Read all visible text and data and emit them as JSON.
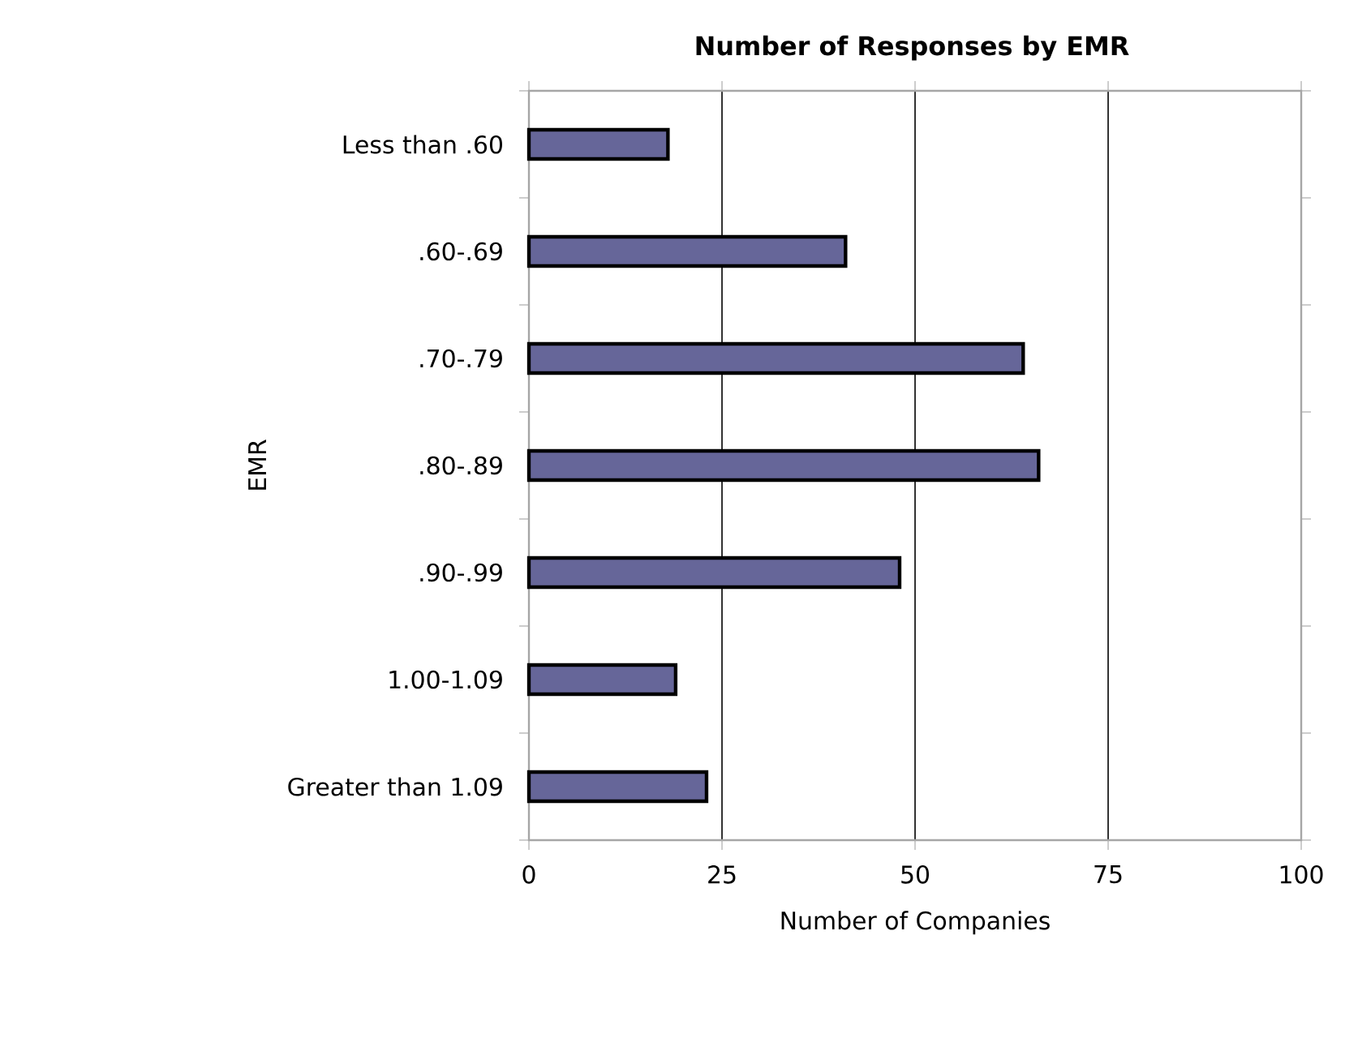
{
  "chart_data": {
    "type": "bar",
    "orientation": "horizontal",
    "title": "Number of Responses by EMR",
    "xlabel": "Number of Companies",
    "ylabel": "EMR",
    "categories": [
      "Less than .60",
      ".60-.69",
      ".70-.79",
      ".80-.89",
      ".90-.99",
      "1.00-1.09",
      "Greater than 1.09"
    ],
    "values": [
      18,
      41,
      64,
      66,
      48,
      19,
      23
    ],
    "color": "#666699",
    "xlim": [
      0,
      100
    ],
    "xticks": [
      0,
      25,
      50,
      75,
      100
    ],
    "grid": "x"
  }
}
